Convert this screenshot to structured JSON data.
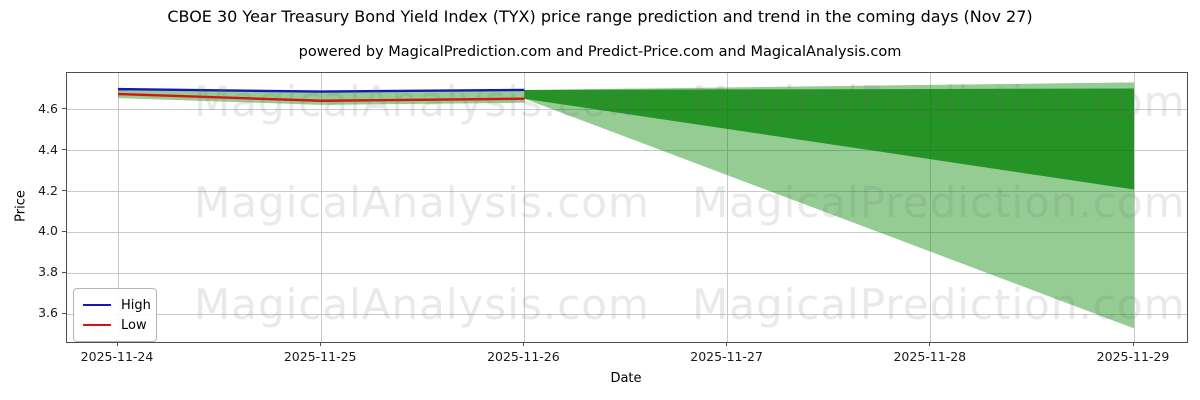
{
  "title": "CBOE 30 Year Treasury Bond Yield Index (TYX) price range prediction and trend in the coming days (Nov 27)",
  "subtitle": "powered by MagicalPrediction.com and Predict-Price.com and MagicalAnalysis.com",
  "watermarks": {
    "left_text": "MagicalAnalysis.com",
    "right_text": "MagicalPrediction.com"
  },
  "axes": {
    "x_label": "Date",
    "y_label": "Price",
    "x_ticks": [
      "2025-11-24",
      "2025-11-25",
      "2025-11-26",
      "2025-11-27",
      "2025-11-28",
      "2025-11-29"
    ],
    "y_ticks": [
      "4.6",
      "4.4",
      "4.2",
      "4.0",
      "3.8",
      "3.6"
    ]
  },
  "legend": {
    "items": [
      {
        "label": "High",
        "color": "#1616b9"
      },
      {
        "label": "Low",
        "color": "#dd1111"
      }
    ]
  },
  "colors": {
    "grid": "#c9c9c9",
    "high_line": "#1616b9",
    "low_line": "#dd1111",
    "inner_band": "rgba(0,128,0,0.75)",
    "outer_band": "rgba(0,134,0,0.42)",
    "history_band": "rgba(0,134,0,0.42)"
  },
  "chart_data": {
    "type": "line",
    "title": "CBOE 30 Year Treasury Bond Yield Index (TYX) price range prediction and trend in the coming days (Nov 27)",
    "xlabel": "Date",
    "ylabel": "Price",
    "x": [
      "2025-11-24",
      "2025-11-25",
      "2025-11-26",
      "2025-11-27",
      "2025-11-28",
      "2025-11-29"
    ],
    "ylim": [
      3.463,
      4.781
    ],
    "grid": true,
    "legend_position": "lower left",
    "series": [
      {
        "name": "High",
        "color": "#1616b9",
        "x_index": [
          0,
          1,
          2
        ],
        "values": [
          4.702,
          4.69,
          4.698
        ]
      },
      {
        "name": "Low",
        "color": "#dd1111",
        "x_index": [
          0,
          1,
          2
        ],
        "values": [
          4.678,
          4.645,
          4.655
        ]
      }
    ],
    "bands": [
      {
        "name": "history-range",
        "color": "rgba(0,134,0,0.42)",
        "x_index": [
          0,
          1,
          2
        ],
        "upper": [
          4.702,
          4.69,
          4.698
        ],
        "lower": [
          4.658,
          4.625,
          4.635
        ]
      },
      {
        "name": "forecast-outer",
        "color": "rgba(0,134,0,0.42)",
        "x_index": [
          2,
          5
        ],
        "upper": [
          4.698,
          4.735
        ],
        "lower": [
          4.655,
          3.53
        ]
      },
      {
        "name": "forecast-inner",
        "color": "rgba(0,128,0,0.75)",
        "x_index": [
          2,
          5
        ],
        "upper": [
          4.698,
          4.705
        ],
        "lower": [
          4.655,
          4.21
        ]
      }
    ]
  }
}
